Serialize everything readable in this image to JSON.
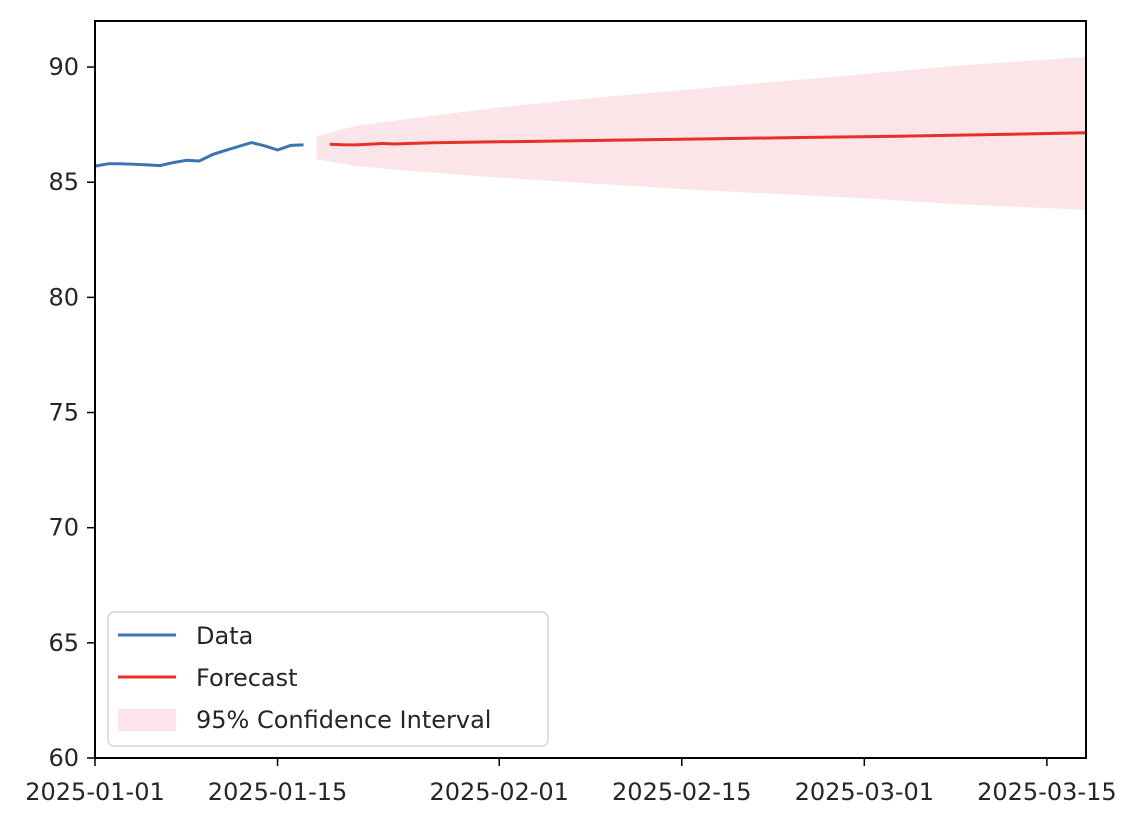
{
  "chart_data": {
    "type": "line",
    "title": "",
    "xlabel": "",
    "ylabel": "",
    "xlim": [
      "2025-01-01",
      "2025-03-18"
    ],
    "ylim": [
      60,
      92
    ],
    "grid": false,
    "legend_position": "lower-left",
    "x_ticks": [
      "2025-01-01",
      "2025-01-15",
      "2025-02-01",
      "2025-02-15",
      "2025-03-01",
      "2025-03-15"
    ],
    "y_ticks": [
      "60",
      "65",
      "70",
      "75",
      "80",
      "85",
      "90"
    ],
    "series": [
      {
        "name": "Data",
        "color": "#3a75b0",
        "points": [
          [
            "2025-01-01",
            85.7
          ],
          [
            "2025-01-02",
            85.8
          ],
          [
            "2025-01-03",
            85.8
          ],
          [
            "2025-01-04",
            85.78
          ],
          [
            "2025-01-05",
            85.75
          ],
          [
            "2025-01-06",
            85.72
          ],
          [
            "2025-01-07",
            85.85
          ],
          [
            "2025-01-08",
            85.95
          ],
          [
            "2025-01-09",
            85.92
          ],
          [
            "2025-01-10",
            86.2
          ],
          [
            "2025-01-11",
            86.38
          ],
          [
            "2025-01-12",
            86.55
          ],
          [
            "2025-01-13",
            86.72
          ],
          [
            "2025-01-14",
            86.58
          ],
          [
            "2025-01-15",
            86.4
          ],
          [
            "2025-01-16",
            86.6
          ],
          [
            "2025-01-17",
            86.62
          ]
        ]
      },
      {
        "name": "Forecast",
        "color": "#e8302a",
        "points": [
          [
            "2025-01-19",
            86.65
          ],
          [
            "2025-01-20",
            86.63
          ],
          [
            "2025-01-21",
            86.62
          ],
          [
            "2025-01-22",
            86.65
          ],
          [
            "2025-01-23",
            86.68
          ],
          [
            "2025-01-24",
            86.66
          ],
          [
            "2025-01-25",
            86.68
          ],
          [
            "2025-01-27",
            86.71
          ],
          [
            "2025-01-30",
            86.74
          ],
          [
            "2025-02-03",
            86.77
          ],
          [
            "2025-02-10",
            86.83
          ],
          [
            "2025-02-17",
            86.88
          ],
          [
            "2025-02-24",
            86.94
          ],
          [
            "2025-03-03",
            86.99
          ],
          [
            "2025-03-10",
            87.06
          ],
          [
            "2025-03-18",
            87.15
          ]
        ]
      }
    ],
    "confidence_interval": {
      "name": "95% Confidence Interval",
      "color": "#fce5e8",
      "points": [
        [
          "2025-01-18",
          86.0,
          87.0
        ],
        [
          "2025-01-21",
          85.7,
          87.45
        ],
        [
          "2025-01-25",
          85.5,
          87.75
        ],
        [
          "2025-02-01",
          85.2,
          88.25
        ],
        [
          "2025-02-08",
          84.95,
          88.65
        ],
        [
          "2025-02-15",
          84.7,
          89.0
        ],
        [
          "2025-02-22",
          84.5,
          89.35
        ],
        [
          "2025-03-01",
          84.3,
          89.7
        ],
        [
          "2025-03-08",
          84.05,
          90.05
        ],
        [
          "2025-03-18",
          83.8,
          90.45
        ]
      ]
    }
  }
}
